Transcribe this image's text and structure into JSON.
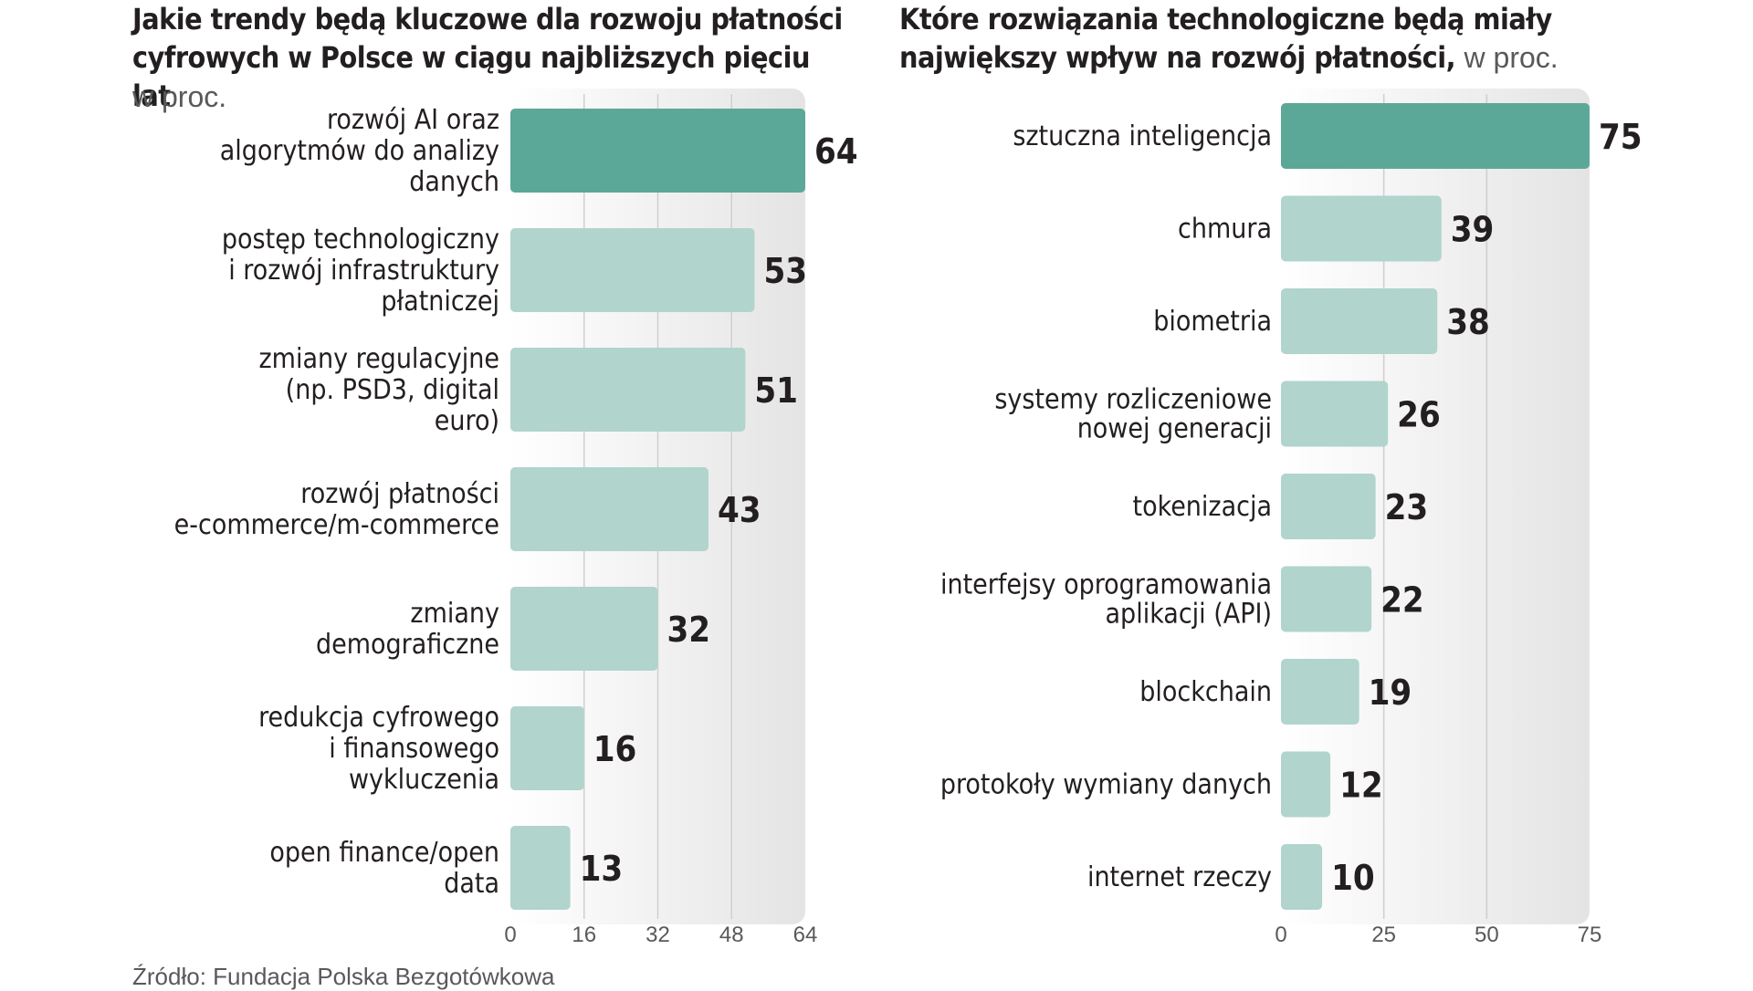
{
  "colors": {
    "highlight": "#5ca898",
    "bar": "#b1d4cd",
    "panel_top": "#ffffff",
    "panel_bottom": "#e4e4e4",
    "grid": "#cfcfcf",
    "text": "#231f20",
    "muted": "#58595b"
  },
  "source": "Źródło: Fundacja Polska Bezgotówkowa",
  "chart_data": [
    {
      "type": "bar",
      "orientation": "horizontal",
      "title": "Jakie trendy będą kluczowe dla rozwoju płatności cyfrowych w Polsce w ciągu najbliższych pięciu lat",
      "unit": "w proc.",
      "categories": [
        [
          "rozwój AI oraz",
          "algorytmów do analizy",
          "danych"
        ],
        [
          "postęp technologiczny",
          "i rozwój infrastruktury",
          "płatniczej"
        ],
        [
          "zmiany regulacyjne",
          "(np. PSD3, digital",
          "euro)"
        ],
        [
          "rozwój płatności",
          "e-commerce/m-commerce"
        ],
        [
          "zmiany",
          "demograficzne"
        ],
        [
          "redukcja cyfrowego",
          "i finansowego",
          "wykluczenia"
        ],
        [
          "open finance/open",
          "data"
        ]
      ],
      "values": [
        64,
        53,
        51,
        43,
        32,
        16,
        13
      ],
      "value_labels": [
        "64",
        "53",
        "51",
        "43",
        "32",
        "16",
        "13"
      ],
      "highlight_index": 0,
      "xlim": [
        0,
        64
      ],
      "xticks": [
        0,
        16,
        32,
        48,
        64
      ],
      "xtick_labels": [
        "0",
        "16",
        "32",
        "48",
        "64"
      ],
      "grid": true
    },
    {
      "type": "bar",
      "orientation": "horizontal",
      "title": "Które rozwiązania technologiczne będą miały największy wpływ na rozwój płatności,",
      "unit": "w proc.",
      "categories": [
        [
          "sztuczna inteligencja"
        ],
        [
          "chmura"
        ],
        [
          "biometria"
        ],
        [
          "systemy rozliczeniowe",
          "nowej generacji"
        ],
        [
          "tokenizacja"
        ],
        [
          "interfejsy oprogramowania",
          "aplikacji (API)"
        ],
        [
          "blockchain"
        ],
        [
          "protokoły wymiany danych"
        ],
        [
          "internet rzeczy"
        ]
      ],
      "values": [
        75,
        39,
        38,
        26,
        23,
        22,
        19,
        12,
        10
      ],
      "value_labels": [
        "75",
        "39",
        "38",
        "26",
        "23",
        "22",
        "19",
        "12",
        "10"
      ],
      "highlight_index": 0,
      "xlim": [
        0,
        75
      ],
      "xticks": [
        0,
        25,
        50,
        75
      ],
      "xtick_labels": [
        "0",
        "25",
        "50",
        "75"
      ],
      "grid": true
    }
  ]
}
